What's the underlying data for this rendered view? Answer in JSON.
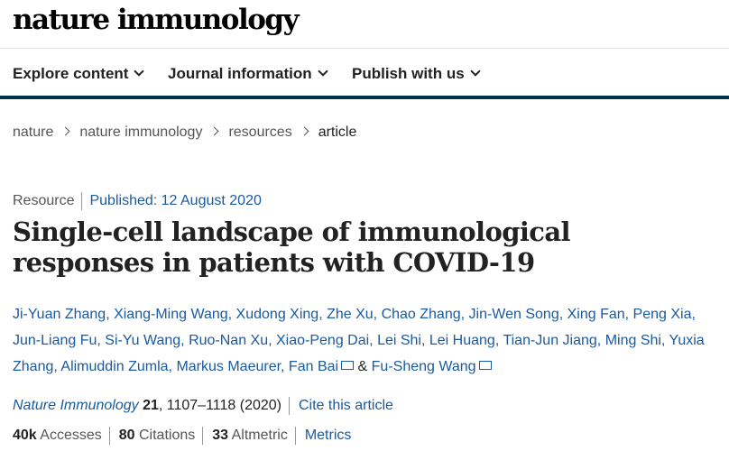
{
  "logo": "nature immunology",
  "nav": [
    "Explore content",
    "Journal information",
    "Publish with us"
  ],
  "breadcrumb": [
    "nature",
    "nature immunology",
    "resources",
    "article"
  ],
  "meta": {
    "type": "Resource",
    "published": "Published: 12 August 2020"
  },
  "title": "Single-cell landscape of immunological responses in patients with COVID-19",
  "authors": [
    "Ji-Yuan Zhang",
    "Xiang-Ming Wang",
    "Xudong Xing",
    "Zhe Xu",
    "Chao Zhang",
    "Jin-Wen Song",
    "Xing Fan",
    "Peng Xia",
    "Jun-Liang Fu",
    "Si-Yu Wang",
    "Ruo-Nan Xu",
    "Xiao-Peng Dai",
    "Lei Shi",
    "Lei Huang",
    "Tian-Jun Jiang",
    "Ming Shi",
    "Yuxia Zhang",
    "Alimuddin Zumla",
    "Markus Maeurer",
    "Fan Bai",
    "Fu-Sheng Wang"
  ],
  "authors_amp": "&",
  "citation": {
    "journal": "Nature Immunology",
    "volume": "21",
    "pages": "1107–1118 (2020)",
    "cite_link": "Cite this article"
  },
  "stats": {
    "accesses_value": "40k",
    "accesses_label": "Accesses",
    "citations_value": "80",
    "citations_label": "Citations",
    "altmetric_value": "33",
    "altmetric_label": "Altmetric",
    "metrics_link": "Metrics"
  }
}
